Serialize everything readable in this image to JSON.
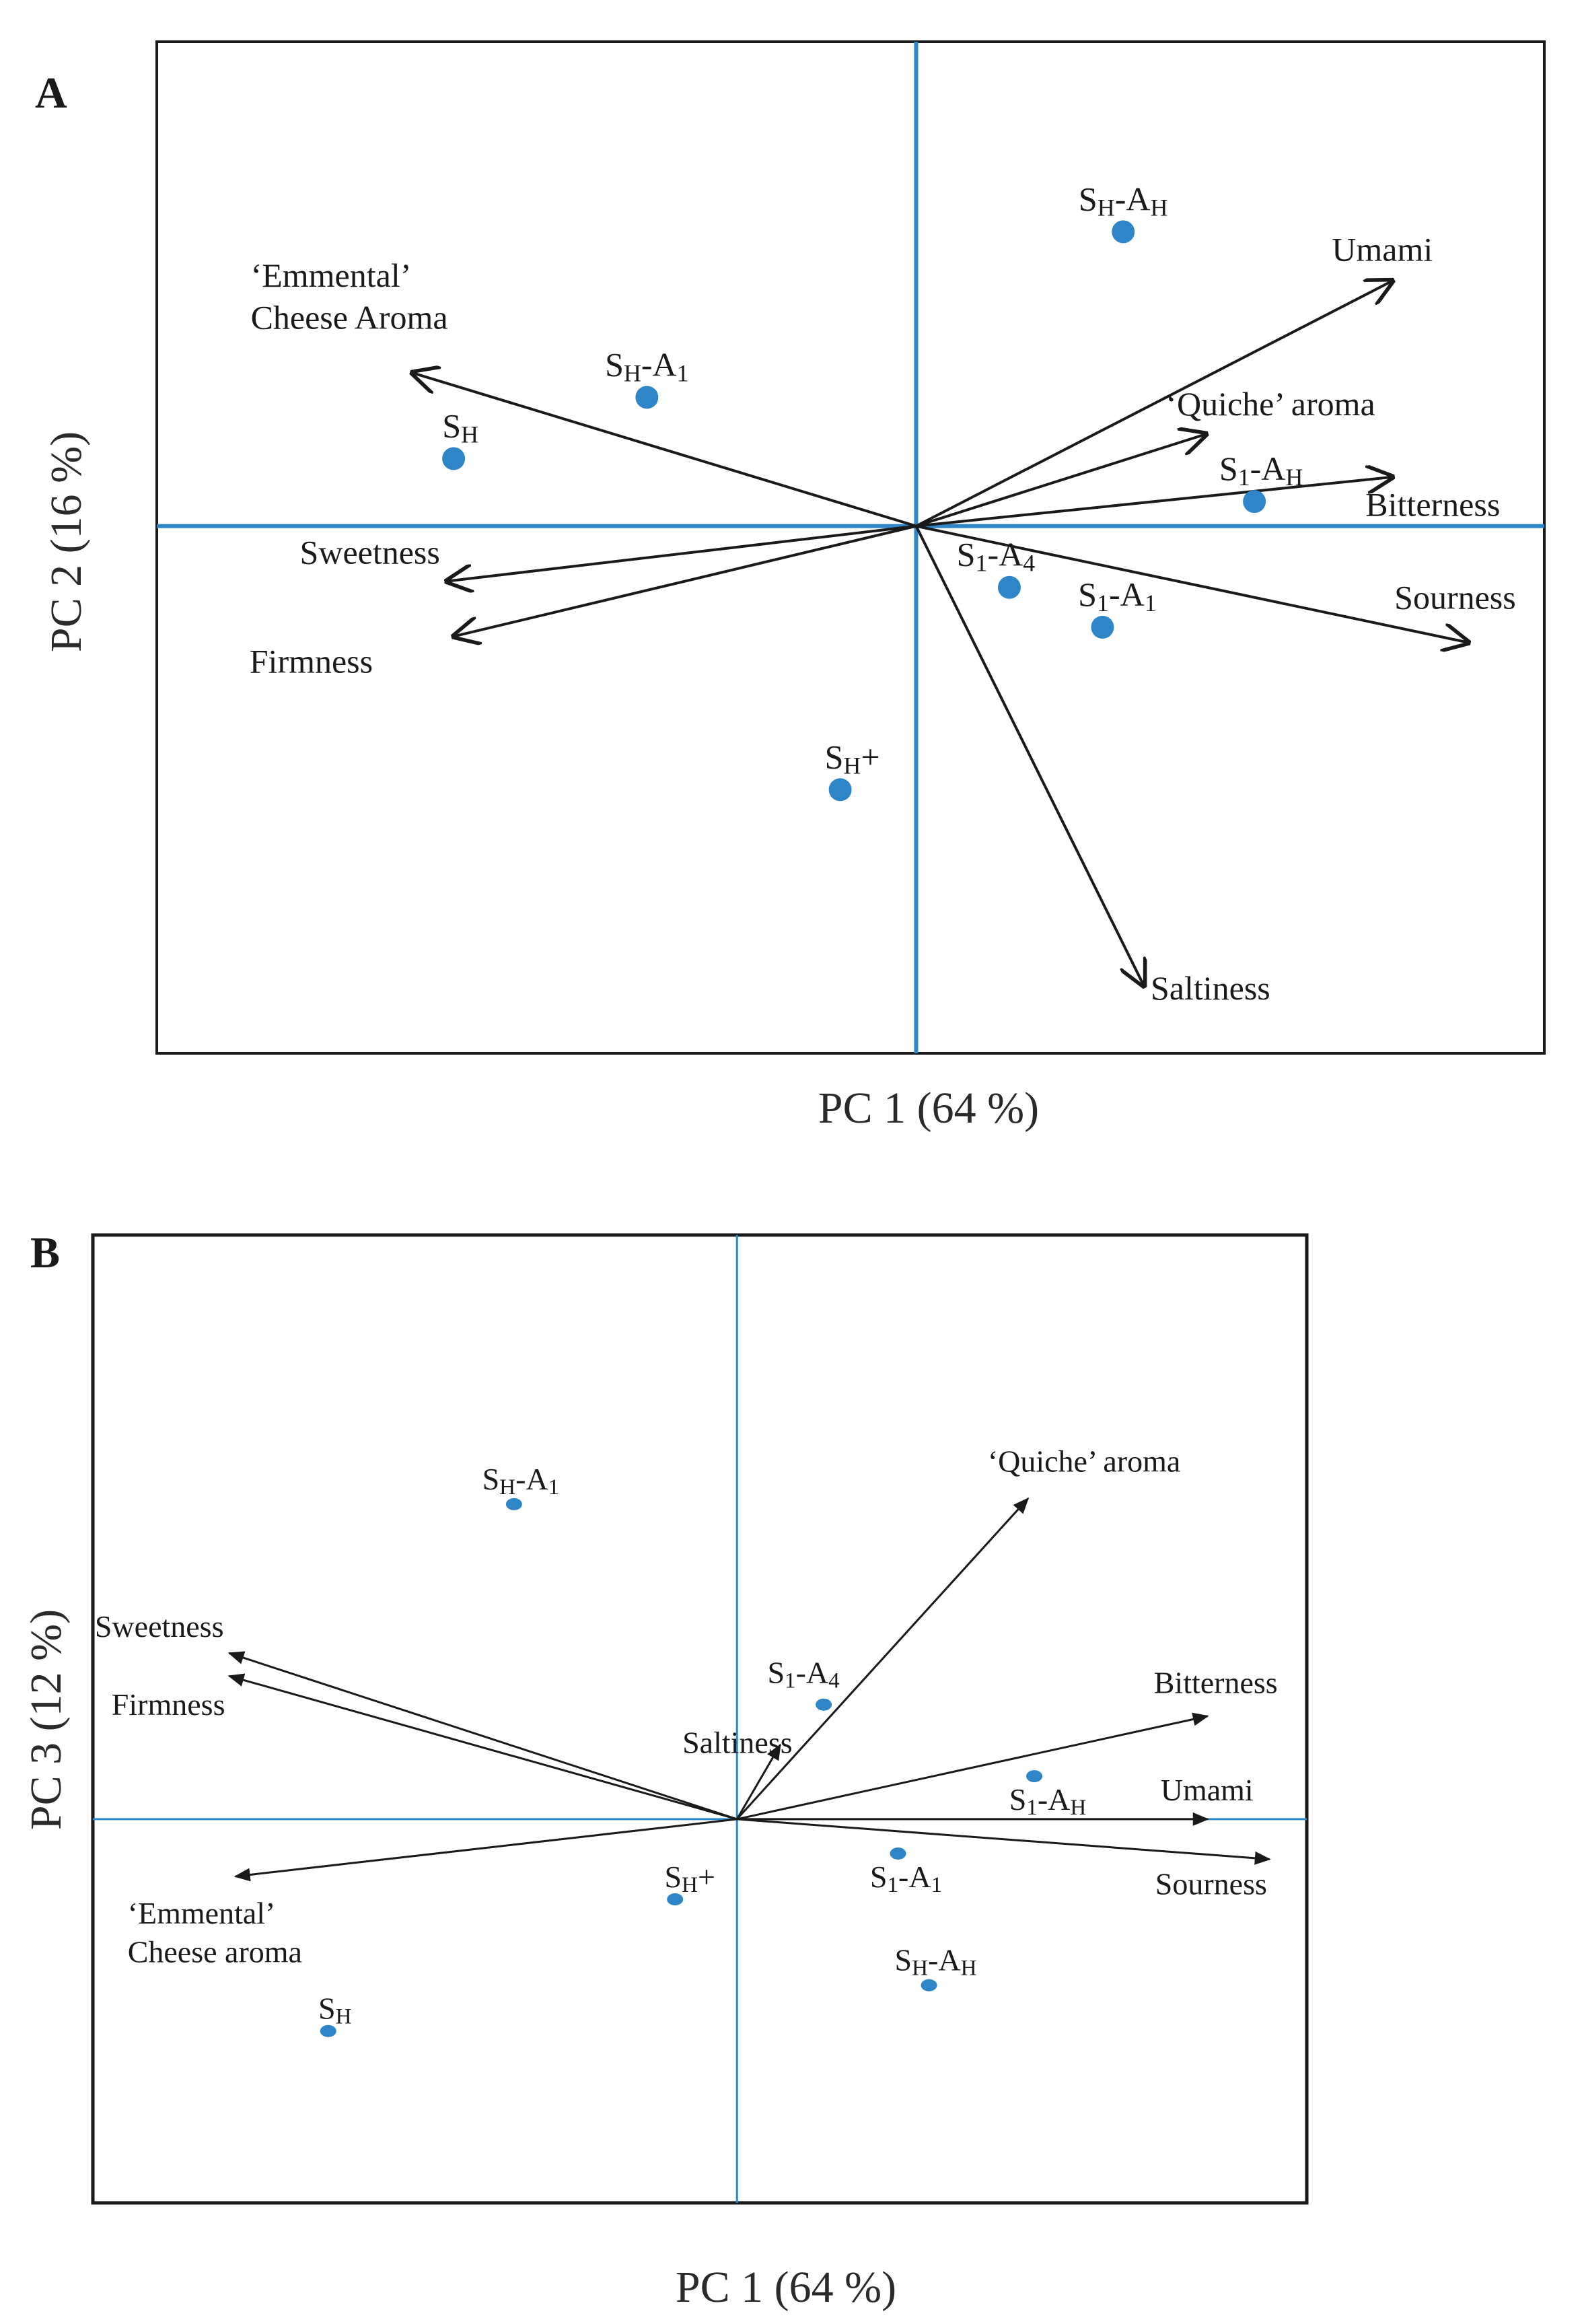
{
  "colors": {
    "axis": "#2e86c8",
    "point": "#2e86c8",
    "arrow": "#1a1a1a",
    "frame": "#1a1a1a"
  },
  "chart_data": [
    {
      "panel": "A",
      "type": "scatter",
      "subtype": "pca-biplot",
      "xlabel": "PC 1 (64 %)",
      "ylabel": "PC 2 (16 %)",
      "xlim": [
        -1.1,
        0.91
      ],
      "ylim": [
        -0.86,
        0.79
      ],
      "grid": false,
      "samples": [
        {
          "label": [
            {
              "t": "S"
            },
            {
              "t": "H",
              "sub": true
            },
            {
              "t": "-A"
            },
            {
              "t": "H",
              "sub": true
            }
          ],
          "x": 0.3,
          "y": 0.48,
          "anchor": "middle",
          "dx": 0,
          "dy": -32
        },
        {
          "label": [
            {
              "t": "S"
            },
            {
              "t": "H",
              "sub": true
            },
            {
              "t": "-A"
            },
            {
              "t": "1",
              "sub": true
            }
          ],
          "x": -0.39,
          "y": 0.21,
          "anchor": "middle",
          "dx": 0,
          "dy": -32
        },
        {
          "label": [
            {
              "t": "S"
            },
            {
              "t": "H",
              "sub": true
            }
          ],
          "x": -0.67,
          "y": 0.11,
          "anchor": "middle",
          "dx": 10,
          "dy": -32
        },
        {
          "label": [
            {
              "t": "S"
            },
            {
              "t": "1",
              "sub": true
            },
            {
              "t": "-A"
            },
            {
              "t": "H",
              "sub": true
            }
          ],
          "x": 0.49,
          "y": 0.04,
          "anchor": "middle",
          "dx": 10,
          "dy": -32
        },
        {
          "label": [
            {
              "t": "S"
            },
            {
              "t": "1",
              "sub": true
            },
            {
              "t": "-A"
            },
            {
              "t": "4",
              "sub": true
            }
          ],
          "x": 0.135,
          "y": -0.1,
          "anchor": "middle",
          "dx": -20,
          "dy": -32
        },
        {
          "label": [
            {
              "t": "S"
            },
            {
              "t": "1",
              "sub": true
            },
            {
              "t": "-A"
            },
            {
              "t": "1",
              "sub": true
            }
          ],
          "x": 0.27,
          "y": -0.165,
          "anchor": "middle",
          "dx": 22,
          "dy": -32
        },
        {
          "label": [
            {
              "t": "S"
            },
            {
              "t": "H",
              "sub": true
            },
            {
              "t": "+"
            }
          ],
          "x": -0.11,
          "y": -0.43,
          "anchor": "middle",
          "dx": 18,
          "dy": -32
        }
      ],
      "loadings": [
        {
          "label": [
            "Umami"
          ],
          "x": 0.69,
          "y": 0.4,
          "anchor": "start",
          "dx": -90,
          "dy": -30
        },
        {
          "label": [
            "‘Quiche’ aroma"
          ],
          "x": 0.42,
          "y": 0.15,
          "anchor": "start",
          "dx": -60,
          "dy": -28
        },
        {
          "label": [
            "Bitterness"
          ],
          "x": 0.69,
          "y": 0.08,
          "anchor": "start",
          "dx": -40,
          "dy": 58
        },
        {
          "label": [
            "Sourness"
          ],
          "x": 0.8,
          "y": -0.19,
          "anchor": "start",
          "dx": -110,
          "dy": -50
        },
        {
          "label": [
            "Saltiness"
          ],
          "x": 0.33,
          "y": -0.75,
          "anchor": "start",
          "dx": 10,
          "dy": 20
        },
        {
          "label": [
            "Sweetness"
          ],
          "x": -0.68,
          "y": -0.09,
          "anchor": "end",
          "dx": -10,
          "dy": -26
        },
        {
          "label": [
            "Firmness"
          ],
          "x": -0.67,
          "y": -0.18,
          "anchor": "end",
          "dx": -120,
          "dy": 54
        },
        {
          "label": [
            "‘Emmental’",
            "Cheese Aroma"
          ],
          "x": -0.73,
          "y": 0.25,
          "anchor": "start",
          "dx": -240,
          "dy": -128
        }
      ]
    },
    {
      "panel": "B",
      "type": "scatter",
      "subtype": "pca-biplot",
      "xlabel": "PC 1 (64 %)",
      "ylabel": "PC 3 (12 %)",
      "xlim": [
        -1.04,
        0.92
      ],
      "ylim": [
        -0.67,
        1.02
      ],
      "grid": false,
      "samples": [
        {
          "label": [
            {
              "t": "S"
            },
            {
              "t": "H",
              "sub": true
            },
            {
              "t": "-A"
            },
            {
              "t": "1",
              "sub": true
            }
          ],
          "x": -0.36,
          "y": 0.55,
          "anchor": "middle",
          "dx": 10,
          "dy": -22
        },
        {
          "label": [
            {
              "t": "S"
            },
            {
              "t": "1",
              "sub": true
            },
            {
              "t": "-A"
            },
            {
              "t": "4",
              "sub": true
            }
          ],
          "x": 0.14,
          "y": 0.2,
          "anchor": "middle",
          "dx": -30,
          "dy": -32
        },
        {
          "label": [
            {
              "t": "S"
            },
            {
              "t": "1",
              "sub": true
            },
            {
              "t": "-A"
            },
            {
              "t": "H",
              "sub": true
            }
          ],
          "x": 0.48,
          "y": 0.075,
          "anchor": "middle",
          "dx": 20,
          "dy": 50
        },
        {
          "label": [
            {
              "t": "S"
            },
            {
              "t": "1",
              "sub": true
            },
            {
              "t": "-A"
            },
            {
              "t": "1",
              "sub": true
            }
          ],
          "x": 0.26,
          "y": -0.06,
          "anchor": "middle",
          "dx": 12,
          "dy": 50
        },
        {
          "label": [
            {
              "t": "S"
            },
            {
              "t": "H",
              "sub": true
            },
            {
              "t": "+"
            }
          ],
          "x": -0.1,
          "y": -0.14,
          "anchor": "middle",
          "dx": 22,
          "dy": -18
        },
        {
          "label": [
            {
              "t": "S"
            },
            {
              "t": "H",
              "sub": true
            },
            {
              "t": "-A"
            },
            {
              "t": "H",
              "sub": true
            }
          ],
          "x": 0.31,
          "y": -0.29,
          "anchor": "middle",
          "dx": 10,
          "dy": -22
        },
        {
          "label": [
            {
              "t": "S"
            },
            {
              "t": "H",
              "sub": true
            }
          ],
          "x": -0.66,
          "y": -0.37,
          "anchor": "middle",
          "dx": 10,
          "dy": -18
        }
      ],
      "loadings": [
        {
          "label": [
            "‘Quiche’ aroma"
          ],
          "x": 0.47,
          "y": 0.56,
          "anchor": "start",
          "dx": -60,
          "dy": -40
        },
        {
          "label": [
            "Bitterness"
          ],
          "x": 0.76,
          "y": 0.18,
          "anchor": "start",
          "dx": -80,
          "dy": -34
        },
        {
          "label": [
            "Umami"
          ],
          "x": 0.76,
          "y": 0.0,
          "anchor": "start",
          "dx": -70,
          "dy": -28
        },
        {
          "label": [
            "Sourness"
          ],
          "x": 0.86,
          "y": -0.07,
          "anchor": "start",
          "dx": -170,
          "dy": 52
        },
        {
          "label": [
            "Saltiness"
          ],
          "x": 0.07,
          "y": 0.13,
          "anchor": "end",
          "dx": 18,
          "dy": 12
        },
        {
          "label": [
            "Sweetness"
          ],
          "x": -0.82,
          "y": 0.29,
          "anchor": "end",
          "dx": -8,
          "dy": -24
        },
        {
          "label": [
            "Firmness"
          ],
          "x": -0.82,
          "y": 0.25,
          "anchor": "end",
          "dx": -6,
          "dy": 58
        },
        {
          "label": [
            "‘Emmental’",
            "Cheese aroma"
          ],
          "x": -0.81,
          "y": -0.1,
          "anchor": "start",
          "dx": -160,
          "dy": 70
        }
      ]
    }
  ]
}
